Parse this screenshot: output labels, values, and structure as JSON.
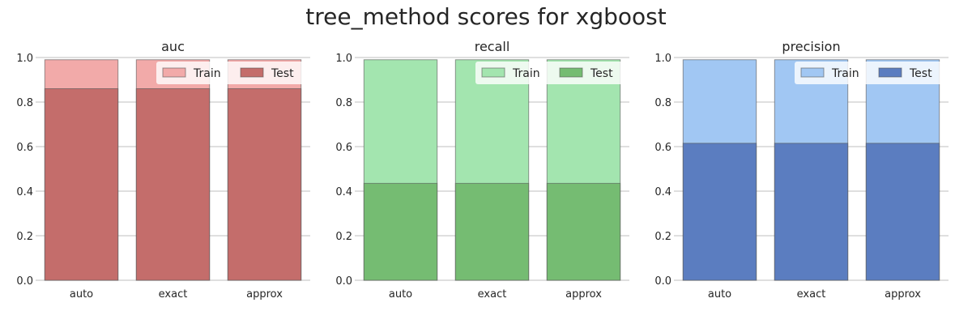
{
  "chart_data": {
    "type": "bar",
    "title": "tree_method scores for xgboost",
    "categories": [
      "auto",
      "exact",
      "approx"
    ],
    "ylim": [
      0,
      1.0
    ],
    "yticks": [
      "0.0",
      "0.2",
      "0.4",
      "0.6",
      "0.8",
      "1.0"
    ],
    "grid": true,
    "legend_position": "top-right",
    "legend_labels": [
      "Train",
      "Test"
    ],
    "panels": [
      {
        "title": "auc",
        "colors": {
          "train": "#f2aaa9",
          "test": "#c46d6b"
        },
        "series": [
          {
            "name": "Train",
            "values": [
              0.99,
              0.99,
              0.99
            ]
          },
          {
            "name": "Test",
            "values": [
              0.86,
              0.86,
              0.86
            ]
          }
        ]
      },
      {
        "title": "recall",
        "colors": {
          "train": "#a3e5af",
          "test": "#75bc72"
        },
        "series": [
          {
            "name": "Train",
            "values": [
              0.99,
              0.99,
              0.99
            ]
          },
          {
            "name": "Test",
            "values": [
              0.435,
              0.435,
              0.435
            ]
          }
        ]
      },
      {
        "title": "precision",
        "colors": {
          "train": "#a1c7f3",
          "test": "#5b7dc0"
        },
        "series": [
          {
            "name": "Train",
            "values": [
              0.99,
              0.99,
              0.99
            ]
          },
          {
            "name": "Test",
            "values": [
              0.615,
              0.615,
              0.615
            ]
          }
        ]
      }
    ]
  }
}
